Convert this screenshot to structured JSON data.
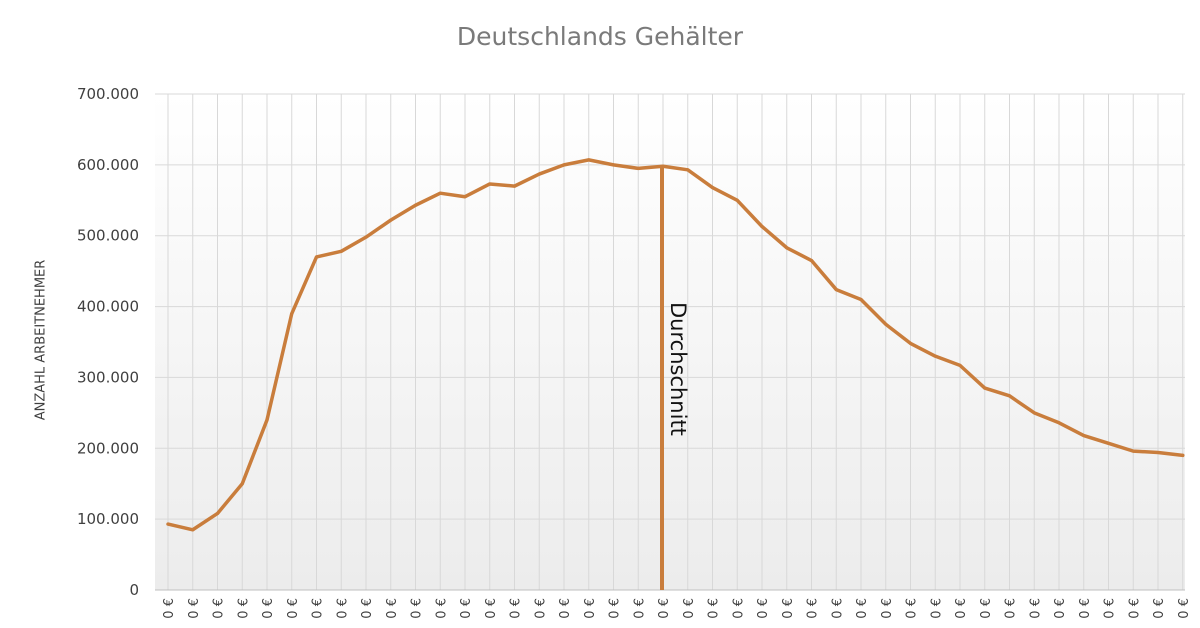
{
  "chart_data": {
    "type": "line",
    "title": "Deutschlands Gehälter",
    "ylabel": "ANZAHL ARBEITNEHMER",
    "xlabel": "",
    "ylim": [
      0,
      700000
    ],
    "y_ticks": [
      0,
      100000,
      200000,
      300000,
      400000,
      500000,
      600000,
      700000
    ],
    "y_tick_labels": [
      "0",
      "100.000",
      "200.000",
      "300.000",
      "400.000",
      "500.000",
      "600.000",
      "700.000"
    ],
    "grid": true,
    "legend": "none",
    "x_tick_labels": [
      "0 €",
      "0 €",
      "0 €",
      "0 €",
      "0 €",
      "0 €",
      "0 €",
      "0 €",
      "0 €",
      "0 €",
      "0 €",
      "0 €",
      "0 €",
      "0 €",
      "0 €",
      "0 €",
      "0 €",
      "0 €",
      "0 €",
      "0 €",
      "0 €",
      "0 €",
      "0 €",
      "0 €",
      "0 €",
      "0 €",
      "0 €",
      "0 €",
      "0 €",
      "0 €",
      "0 €",
      "0 €",
      "0 €",
      "0 €",
      "0 €",
      "0 €",
      "0 €",
      "0 €",
      "0 €",
      "0 €",
      "0 €",
      "0 €"
    ],
    "series": [
      {
        "color": "#c97d3c",
        "values": [
          93000,
          85000,
          108000,
          150000,
          240000,
          390000,
          470000,
          478000,
          498000,
          522000,
          543000,
          560000,
          555000,
          573000,
          570000,
          587000,
          600000,
          607000,
          600000,
          595000,
          598000,
          593000,
          568000,
          550000,
          513000,
          483000,
          465000,
          424000,
          410000,
          375000,
          348000,
          330000,
          317000,
          285000,
          274000,
          250000,
          236000,
          218000,
          207000,
          196000,
          194000,
          190000
        ]
      }
    ],
    "annotation": {
      "label": "Durchschnitt",
      "x_index": 20,
      "value": 595000,
      "color": "#c97d3c"
    }
  }
}
